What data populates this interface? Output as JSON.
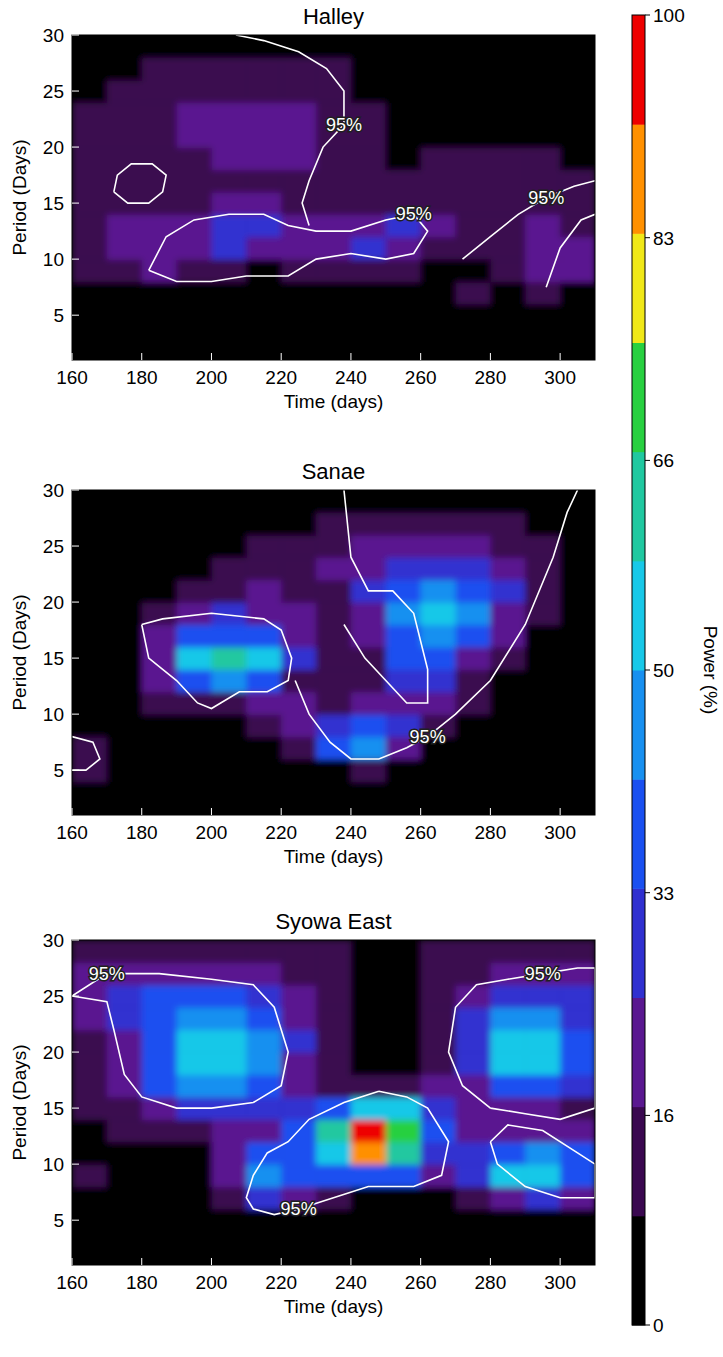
{
  "chart_data": [
    {
      "type": "heatmap",
      "title": "Halley",
      "x_label": "Time (days)",
      "y_label": "Period (Days)",
      "xlim": [
        160,
        310
      ],
      "ylim": [
        1,
        30
      ],
      "xticks": [
        160,
        180,
        200,
        220,
        240,
        260,
        280,
        300
      ],
      "yticks": [
        5,
        10,
        15,
        20,
        25,
        30
      ],
      "x": [
        165,
        175,
        185,
        195,
        205,
        215,
        225,
        235,
        245,
        255,
        265,
        275,
        285,
        295,
        305
      ],
      "y": [
        3,
        5,
        7,
        9,
        11,
        13,
        15,
        17,
        19,
        21,
        23,
        25,
        27,
        29
      ],
      "values": [
        [
          1,
          1,
          1,
          1,
          1,
          1,
          1,
          1,
          1,
          1,
          1,
          1,
          1,
          1,
          1
        ],
        [
          2,
          2,
          2,
          2,
          2,
          2,
          2,
          2,
          2,
          2,
          4,
          5,
          3,
          3,
          3
        ],
        [
          4,
          6,
          8,
          6,
          3,
          2,
          2,
          2,
          3,
          3,
          6,
          10,
          6,
          10,
          8
        ],
        [
          10,
          16,
          18,
          14,
          10,
          8,
          10,
          12,
          14,
          12,
          8,
          8,
          12,
          20,
          18
        ],
        [
          12,
          18,
          22,
          24,
          26,
          24,
          22,
          24,
          27,
          22,
          14,
          10,
          14,
          22,
          20
        ],
        [
          15,
          17,
          20,
          24,
          28,
          26,
          24,
          24,
          24,
          26,
          18,
          12,
          14,
          18,
          16
        ],
        [
          16,
          15,
          12,
          15,
          18,
          18,
          16,
          14,
          12,
          12,
          13,
          14,
          15,
          14,
          12
        ],
        [
          14,
          13,
          10,
          12,
          15,
          15,
          14,
          12,
          10,
          10,
          12,
          14,
          15,
          14,
          10
        ],
        [
          12,
          12,
          13,
          15,
          17,
          18,
          17,
          14,
          10,
          8,
          9,
          12,
          14,
          12,
          8
        ],
        [
          10,
          13,
          15,
          17,
          20,
          21,
          20,
          16,
          10,
          6,
          5,
          6,
          8,
          8,
          6
        ],
        [
          10,
          13,
          16,
          18,
          20,
          21,
          20,
          16,
          10,
          5,
          4,
          4,
          4,
          4,
          4
        ],
        [
          8,
          12,
          14,
          15,
          16,
          16,
          15,
          13,
          8,
          4,
          3,
          3,
          3,
          3,
          3
        ],
        [
          5,
          8,
          10,
          12,
          12,
          12,
          12,
          10,
          6,
          3,
          2,
          2,
          2,
          2,
          2
        ],
        [
          2,
          3,
          4,
          5,
          5,
          5,
          5,
          4,
          3,
          2,
          2,
          2,
          2,
          2,
          2
        ]
      ],
      "contours": [
        {
          "label": "95%",
          "x": [
            182,
            190,
            200,
            210,
            222,
            230,
            240,
            250,
            258,
            262,
            258,
            250,
            240,
            230,
            222,
            215,
            205,
            195,
            187,
            182
          ],
          "y": [
            9,
            8,
            8,
            8.5,
            8.5,
            10,
            10.5,
            10,
            10.5,
            12.5,
            14,
            13.5,
            12.5,
            12.5,
            13,
            14,
            14,
            13.5,
            12,
            9
          ]
        },
        {
          "label": "95%",
          "x": [
            207,
            215,
            225,
            233,
            238,
            238,
            232,
            228,
            226,
            228
          ],
          "y": [
            30,
            29.5,
            28.5,
            27,
            25,
            22,
            20,
            17,
            15,
            13
          ]
        },
        {
          "x": [
            172,
            176,
            182,
            186,
            187,
            183,
            177,
            173,
            172
          ],
          "y": [
            16,
            15,
            15,
            16,
            17.5,
            18.5,
            18.5,
            17.5,
            16
          ]
        },
        {
          "label": "95%",
          "x": [
            272,
            280,
            288,
            296,
            304,
            310
          ],
          "y": [
            10,
            12,
            14,
            15.5,
            16.5,
            17
          ]
        },
        {
          "x": [
            296,
            300,
            306,
            310
          ],
          "y": [
            7.5,
            11,
            13.5,
            14
          ]
        }
      ]
    },
    {
      "type": "heatmap",
      "title": "Sanae",
      "x_label": "Time (days)",
      "y_label": "Period (Days)",
      "xlim": [
        160,
        310
      ],
      "ylim": [
        1,
        30
      ],
      "xticks": [
        160,
        180,
        200,
        220,
        240,
        260,
        280,
        300
      ],
      "yticks": [
        5,
        10,
        15,
        20,
        25,
        30
      ],
      "x": [
        165,
        175,
        185,
        195,
        205,
        215,
        225,
        235,
        245,
        255,
        265,
        275,
        285,
        295,
        305
      ],
      "y": [
        3,
        5,
        7,
        9,
        11,
        13,
        15,
        17,
        19,
        21,
        23,
        25,
        27,
        29
      ],
      "values": [
        [
          1,
          1,
          1,
          1,
          1,
          1,
          1,
          1,
          1,
          1,
          1,
          1,
          1,
          1,
          1
        ],
        [
          10,
          4,
          1,
          1,
          1,
          2,
          4,
          8,
          10,
          6,
          2,
          1,
          1,
          1,
          1
        ],
        [
          12,
          5,
          1,
          1,
          2,
          6,
          14,
          34,
          44,
          24,
          8,
          2,
          1,
          1,
          1
        ],
        [
          5,
          3,
          4,
          4,
          6,
          14,
          24,
          30,
          36,
          26,
          12,
          5,
          2,
          1,
          1
        ],
        [
          3,
          4,
          10,
          14,
          14,
          18,
          18,
          14,
          18,
          24,
          20,
          10,
          3,
          2,
          1
        ],
        [
          2,
          5,
          20,
          40,
          44,
          36,
          16,
          10,
          12,
          32,
          30,
          16,
          6,
          3,
          2
        ],
        [
          2,
          6,
          24,
          52,
          62,
          52,
          28,
          12,
          14,
          36,
          38,
          24,
          10,
          4,
          2
        ],
        [
          3,
          5,
          18,
          34,
          40,
          36,
          22,
          12,
          18,
          40,
          46,
          36,
          18,
          6,
          3
        ],
        [
          3,
          5,
          12,
          20,
          25,
          24,
          18,
          14,
          24,
          44,
          52,
          44,
          24,
          10,
          4
        ],
        [
          3,
          4,
          8,
          12,
          16,
          18,
          16,
          16,
          26,
          40,
          45,
          40,
          26,
          14,
          5
        ],
        [
          3,
          3,
          5,
          8,
          12,
          14,
          14,
          18,
          24,
          30,
          32,
          30,
          22,
          14,
          6
        ],
        [
          2,
          2,
          3,
          5,
          8,
          10,
          12,
          14,
          18,
          20,
          20,
          18,
          14,
          10,
          5
        ],
        [
          1,
          1,
          2,
          3,
          4,
          6,
          8,
          10,
          12,
          13,
          13,
          12,
          10,
          6,
          3
        ],
        [
          1,
          1,
          1,
          1,
          2,
          2,
          3,
          3,
          3,
          3,
          3,
          3,
          2,
          2,
          1
        ]
      ],
      "contours": [
        {
          "x": [
            180,
            186,
            200,
            215,
            220,
            223,
            222,
            216,
            208,
            200,
            196,
            190,
            186,
            182,
            180
          ],
          "y": [
            18,
            18.5,
            19,
            18.5,
            17.5,
            15,
            13,
            12,
            12,
            10.5,
            11,
            13,
            14,
            15,
            18
          ]
        },
        {
          "label": "95%",
          "x": [
            224,
            228,
            234,
            240,
            248,
            256,
            262,
            270,
            280,
            290,
            298,
            302,
            305
          ],
          "y": [
            13,
            10,
            7.5,
            6,
            6,
            7,
            8,
            10,
            13,
            18,
            24,
            28,
            30
          ]
        },
        {
          "x": [
            238,
            240,
            245,
            252,
            258,
            262,
            262,
            256,
            250,
            244,
            238
          ],
          "y": [
            30,
            24,
            21,
            21,
            19,
            14,
            11,
            11,
            13,
            15,
            18
          ]
        },
        {
          "x": [
            160,
            166,
            168,
            164,
            160
          ],
          "y": [
            8,
            7.5,
            6,
            5,
            5
          ]
        }
      ]
    },
    {
      "type": "heatmap",
      "title": "Syowa East",
      "x_label": "Time (days)",
      "y_label": "Period (Days)",
      "xlim": [
        160,
        310
      ],
      "ylim": [
        1,
        30
      ],
      "xticks": [
        160,
        180,
        200,
        220,
        240,
        260,
        280,
        300
      ],
      "yticks": [
        5,
        10,
        15,
        20,
        25,
        30
      ],
      "x": [
        165,
        175,
        185,
        195,
        205,
        215,
        225,
        235,
        245,
        255,
        265,
        275,
        285,
        295,
        305
      ],
      "y": [
        3,
        5,
        7,
        9,
        11,
        13,
        15,
        17,
        19,
        21,
        23,
        25,
        27,
        29
      ],
      "values": [
        [
          1,
          1,
          1,
          1,
          1,
          1,
          1,
          1,
          1,
          1,
          1,
          1,
          1,
          1,
          1
        ],
        [
          2,
          1,
          1,
          1,
          3,
          6,
          4,
          2,
          1,
          1,
          1,
          2,
          4,
          4,
          3
        ],
        [
          8,
          2,
          2,
          4,
          14,
          30,
          20,
          12,
          8,
          6,
          6,
          12,
          24,
          26,
          18
        ],
        [
          12,
          4,
          4,
          6,
          24,
          48,
          40,
          36,
          40,
          34,
          18,
          30,
          52,
          56,
          40
        ],
        [
          8,
          6,
          6,
          8,
          18,
          36,
          40,
          54,
          88,
          60,
          30,
          26,
          40,
          46,
          36
        ],
        [
          8,
          10,
          14,
          16,
          18,
          24,
          36,
          66,
          98,
          72,
          36,
          20,
          22,
          24,
          18
        ],
        [
          10,
          16,
          24,
          30,
          28,
          26,
          28,
          38,
          52,
          50,
          30,
          18,
          22,
          22,
          16
        ],
        [
          12,
          18,
          34,
          46,
          44,
          34,
          22,
          16,
          14,
          16,
          18,
          24,
          38,
          38,
          26
        ],
        [
          10,
          18,
          38,
          54,
          56,
          44,
          24,
          12,
          6,
          8,
          14,
          30,
          52,
          52,
          34
        ],
        [
          14,
          24,
          40,
          52,
          54,
          44,
          26,
          12,
          4,
          4,
          12,
          30,
          52,
          54,
          36
        ],
        [
          20,
          30,
          40,
          46,
          46,
          38,
          24,
          10,
          3,
          3,
          10,
          26,
          42,
          44,
          32
        ],
        [
          22,
          28,
          34,
          38,
          36,
          30,
          20,
          10,
          4,
          4,
          10,
          22,
          30,
          32,
          26
        ],
        [
          18,
          20,
          22,
          22,
          20,
          18,
          14,
          10,
          6,
          6,
          10,
          14,
          18,
          20,
          18
        ],
        [
          10,
          12,
          12,
          14,
          14,
          14,
          12,
          10,
          8,
          8,
          10,
          12,
          12,
          12,
          10
        ]
      ],
      "contours": [
        {
          "label": "95%",
          "x": [
            212,
            200,
            190,
            180,
            175,
            172,
            170,
            160,
            170,
            185,
            200,
            212,
            218,
            222,
            220,
            212
          ],
          "y": [
            15.5,
            15,
            15,
            16,
            18,
            22,
            24.5,
            25,
            27,
            27,
            26.5,
            26,
            24,
            20,
            17,
            15.5
          ]
        },
        {
          "label": "95%",
          "x": [
            280,
            272,
            268,
            270,
            276,
            285,
            295,
            305,
            310,
            310,
            300,
            290,
            280
          ],
          "y": [
            15,
            17,
            20,
            24,
            26,
            26.5,
            27,
            27.5,
            27.5,
            15,
            14,
            14.5,
            15
          ]
        },
        {
          "label": "95%",
          "x": [
            248,
            238,
            228,
            222,
            216,
            212,
            210,
            212,
            218,
            225,
            235,
            245,
            258,
            266,
            268,
            262,
            256,
            248
          ],
          "y": [
            16.5,
            15.5,
            14,
            12,
            11,
            9,
            7,
            6,
            5.5,
            6,
            7,
            8,
            8,
            9,
            12,
            15,
            16,
            16.5
          ]
        },
        {
          "x": [
            280,
            285,
            295,
            305,
            310,
            310,
            300,
            290,
            282,
            280
          ],
          "y": [
            12,
            13.5,
            13,
            11,
            10,
            7,
            7,
            8,
            10,
            12
          ]
        }
      ]
    }
  ],
  "colorbar": {
    "label": "Power (%)",
    "range": [
      0,
      100
    ],
    "ticks": [
      0,
      16,
      33,
      50,
      66,
      83,
      100
    ],
    "colors": [
      "#000000",
      "#3a0850",
      "#5a1890",
      "#3030d0",
      "#1a50f0",
      "#1890f0",
      "#18c8e8",
      "#20c8a0",
      "#28d040",
      "#f0e818",
      "#ff9000",
      "#ee0000"
    ]
  }
}
